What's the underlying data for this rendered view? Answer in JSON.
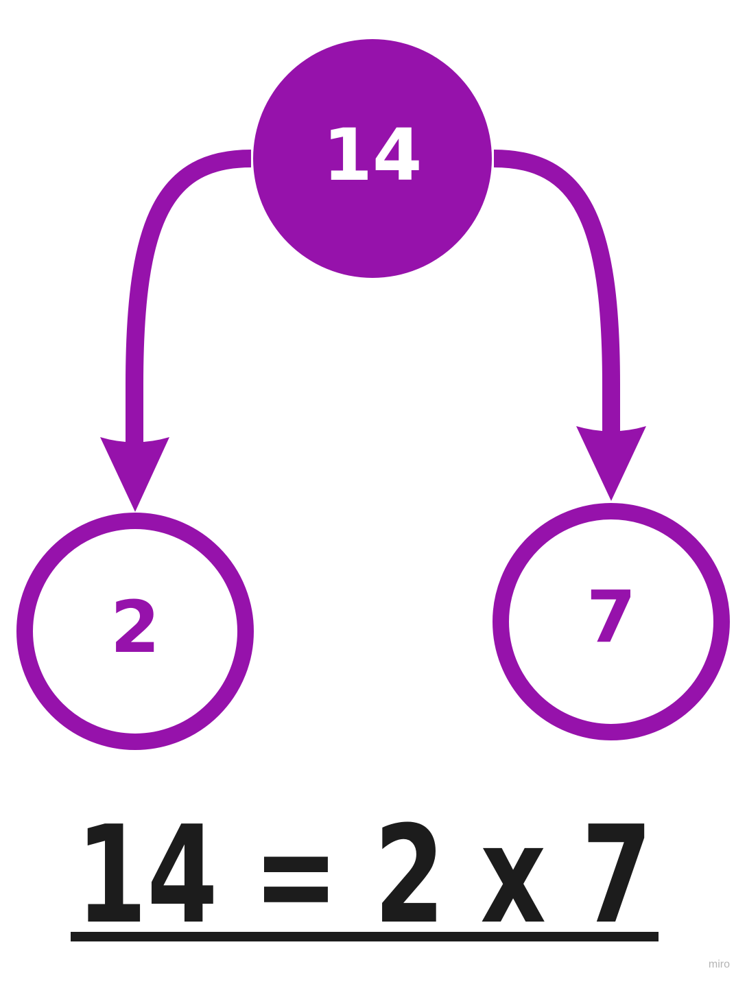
{
  "colors": {
    "accent": "#9612ab",
    "text_dark": "#1c1c1c",
    "background": "#ffffff",
    "node_text_light": "#ffffff",
    "watermark": "#b4b4b4"
  },
  "factor_tree": {
    "root": {
      "value": "14"
    },
    "left_child": {
      "value": "2"
    },
    "right_child": {
      "value": "7"
    }
  },
  "equation": {
    "text": "14 = 2 x 7"
  },
  "watermark": {
    "text": "miro"
  }
}
